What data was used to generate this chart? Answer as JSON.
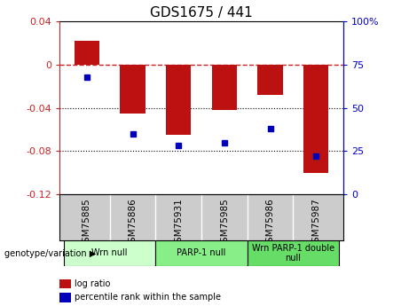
{
  "title": "GDS1675 / 441",
  "samples": [
    "GSM75885",
    "GSM75886",
    "GSM75931",
    "GSM75985",
    "GSM75986",
    "GSM75987"
  ],
  "log_ratios": [
    0.022,
    -0.045,
    -0.065,
    -0.042,
    -0.028,
    -0.1
  ],
  "percentile_ranks": [
    68,
    35,
    28,
    30,
    38,
    22
  ],
  "bar_color": "#bb1111",
  "dot_color": "#0000bb",
  "ylim_left": [
    -0.12,
    0.04
  ],
  "ylim_right": [
    0,
    100
  ],
  "yticks_left": [
    -0.12,
    -0.08,
    -0.04,
    0,
    0.04
  ],
  "yticks_right": [
    0,
    25,
    50,
    75,
    100
  ],
  "groups": [
    {
      "label": "Wrn null",
      "start": 0,
      "end": 2,
      "color": "#ccffcc"
    },
    {
      "label": "PARP-1 null",
      "start": 2,
      "end": 4,
      "color": "#88ee88"
    },
    {
      "label": "Wrn PARP-1 double\nnull",
      "start": 4,
      "end": 6,
      "color": "#66dd66"
    }
  ],
  "background_color": "#ffffff",
  "zero_line_color": "#cc2222",
  "grid_color": "#000000",
  "left_axis_color": "#cc2222",
  "right_axis_color": "#0000cc",
  "sample_box_color": "#cccccc",
  "legend_items": [
    {
      "label": "log ratio",
      "color": "#bb1111"
    },
    {
      "label": "percentile rank within the sample",
      "color": "#0000bb"
    }
  ]
}
